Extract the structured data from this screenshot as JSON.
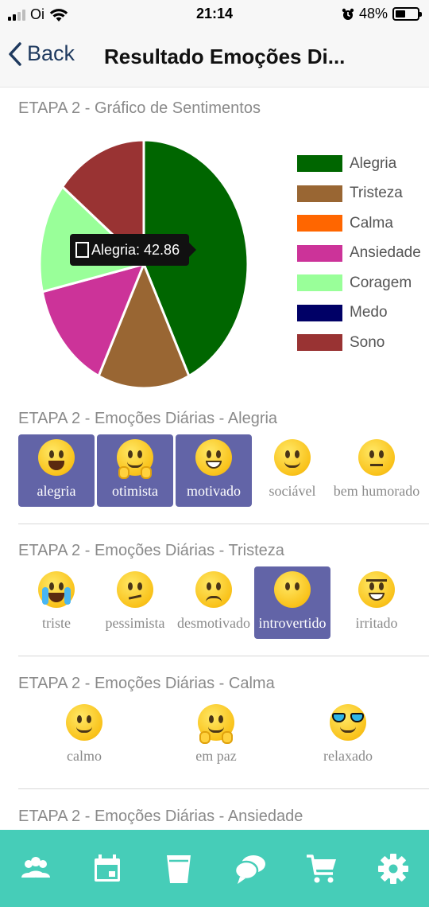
{
  "status_bar": {
    "carrier": "Oi",
    "time": "21:14",
    "battery": "48%",
    "battery_level": 0.48
  },
  "nav": {
    "back_label": "Back",
    "title": "Resultado Emoções Di..."
  },
  "chart_section": {
    "title": "ETAPA 2 - Gráfico de Sentimentos"
  },
  "chart_data": {
    "type": "pie",
    "categories": [
      "Alegria",
      "Tristeza",
      "Calma",
      "Ansiedade",
      "Coragem",
      "Medo",
      "Sono"
    ],
    "values": [
      42.86,
      14.29,
      0,
      14.29,
      14.29,
      0,
      14.29
    ],
    "colors": [
      "#006600",
      "#996633",
      "#ff6600",
      "#cc3399",
      "#99ff99",
      "#000066",
      "#993333"
    ],
    "legend_position": "right",
    "tooltip": {
      "text": "Alegria: 42.86",
      "series_index": 0
    }
  },
  "sections": [
    {
      "title": "ETAPA 2 - Emoções Diárias - Alegria",
      "items": [
        {
          "label": "alegria",
          "icon": "surprised-face-icon",
          "selected": true
        },
        {
          "label": "otimista",
          "icon": "hugging-face-icon",
          "selected": true
        },
        {
          "label": "motivado",
          "icon": "grinning-face-icon",
          "selected": true
        },
        {
          "label": "sociável",
          "icon": "smiling-face-icon",
          "selected": false
        },
        {
          "label": "bem humorado",
          "icon": "neutral-face-icon",
          "selected": false
        }
      ]
    },
    {
      "title": "ETAPA 2 - Emoções Diárias - Tristeza",
      "items": [
        {
          "label": "triste",
          "icon": "crying-face-icon",
          "selected": false
        },
        {
          "label": "pessimista",
          "icon": "confused-face-icon",
          "selected": false
        },
        {
          "label": "desmotivado",
          "icon": "pensive-face-icon",
          "selected": false
        },
        {
          "label": "introvertido",
          "icon": "face-without-mouth-icon",
          "selected": true
        },
        {
          "label": "irritado",
          "icon": "angry-face-icon",
          "selected": false
        }
      ]
    },
    {
      "title": "ETAPA 2 - Emoções Diárias - Calma",
      "items": [
        {
          "label": "calmo",
          "icon": "relieved-face-icon",
          "selected": false
        },
        {
          "label": "em paz",
          "icon": "hugging-face-icon",
          "selected": false
        },
        {
          "label": "relaxado",
          "icon": "sunglasses-face-icon",
          "selected": false
        }
      ]
    },
    {
      "title": "ETAPA 2 - Emoções Diárias - Ansiedade",
      "items": []
    }
  ],
  "tabbar": {
    "tabs": [
      {
        "icon": "group-icon"
      },
      {
        "icon": "calendar-icon"
      },
      {
        "icon": "glass-icon"
      },
      {
        "icon": "chat-bubbles-icon"
      },
      {
        "icon": "cart-icon"
      },
      {
        "icon": "gear-icon"
      }
    ],
    "color": "#46cdb8"
  },
  "colors": {
    "selected_chip": "#6264a7",
    "accent": "#46cdb8"
  }
}
